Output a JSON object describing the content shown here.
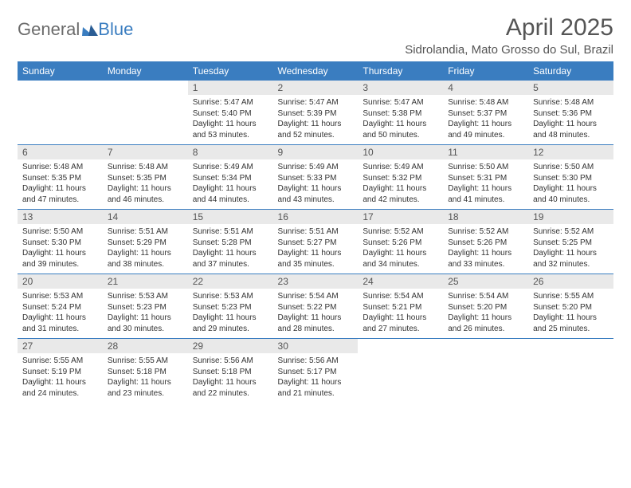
{
  "brand": {
    "part1": "General",
    "part2": "Blue"
  },
  "title": "April 2025",
  "location": "Sidrolandia, Mato Grosso do Sul, Brazil",
  "colors": {
    "header_bg": "#3a7dc0",
    "header_text": "#ffffff",
    "daynum_bg": "#e9e9e9",
    "rule": "#3a7dc0",
    "logo_gray": "#6b6b6b",
    "logo_blue": "#3a7dc0"
  },
  "columns": [
    "Sunday",
    "Monday",
    "Tuesday",
    "Wednesday",
    "Thursday",
    "Friday",
    "Saturday"
  ],
  "weeks": [
    [
      null,
      null,
      {
        "n": "1",
        "sr": "5:47 AM",
        "ss": "5:40 PM",
        "dl": "11 hours and 53 minutes."
      },
      {
        "n": "2",
        "sr": "5:47 AM",
        "ss": "5:39 PM",
        "dl": "11 hours and 52 minutes."
      },
      {
        "n": "3",
        "sr": "5:47 AM",
        "ss": "5:38 PM",
        "dl": "11 hours and 50 minutes."
      },
      {
        "n": "4",
        "sr": "5:48 AM",
        "ss": "5:37 PM",
        "dl": "11 hours and 49 minutes."
      },
      {
        "n": "5",
        "sr": "5:48 AM",
        "ss": "5:36 PM",
        "dl": "11 hours and 48 minutes."
      }
    ],
    [
      {
        "n": "6",
        "sr": "5:48 AM",
        "ss": "5:35 PM",
        "dl": "11 hours and 47 minutes."
      },
      {
        "n": "7",
        "sr": "5:48 AM",
        "ss": "5:35 PM",
        "dl": "11 hours and 46 minutes."
      },
      {
        "n": "8",
        "sr": "5:49 AM",
        "ss": "5:34 PM",
        "dl": "11 hours and 44 minutes."
      },
      {
        "n": "9",
        "sr": "5:49 AM",
        "ss": "5:33 PM",
        "dl": "11 hours and 43 minutes."
      },
      {
        "n": "10",
        "sr": "5:49 AM",
        "ss": "5:32 PM",
        "dl": "11 hours and 42 minutes."
      },
      {
        "n": "11",
        "sr": "5:50 AM",
        "ss": "5:31 PM",
        "dl": "11 hours and 41 minutes."
      },
      {
        "n": "12",
        "sr": "5:50 AM",
        "ss": "5:30 PM",
        "dl": "11 hours and 40 minutes."
      }
    ],
    [
      {
        "n": "13",
        "sr": "5:50 AM",
        "ss": "5:30 PM",
        "dl": "11 hours and 39 minutes."
      },
      {
        "n": "14",
        "sr": "5:51 AM",
        "ss": "5:29 PM",
        "dl": "11 hours and 38 minutes."
      },
      {
        "n": "15",
        "sr": "5:51 AM",
        "ss": "5:28 PM",
        "dl": "11 hours and 37 minutes."
      },
      {
        "n": "16",
        "sr": "5:51 AM",
        "ss": "5:27 PM",
        "dl": "11 hours and 35 minutes."
      },
      {
        "n": "17",
        "sr": "5:52 AM",
        "ss": "5:26 PM",
        "dl": "11 hours and 34 minutes."
      },
      {
        "n": "18",
        "sr": "5:52 AM",
        "ss": "5:26 PM",
        "dl": "11 hours and 33 minutes."
      },
      {
        "n": "19",
        "sr": "5:52 AM",
        "ss": "5:25 PM",
        "dl": "11 hours and 32 minutes."
      }
    ],
    [
      {
        "n": "20",
        "sr": "5:53 AM",
        "ss": "5:24 PM",
        "dl": "11 hours and 31 minutes."
      },
      {
        "n": "21",
        "sr": "5:53 AM",
        "ss": "5:23 PM",
        "dl": "11 hours and 30 minutes."
      },
      {
        "n": "22",
        "sr": "5:53 AM",
        "ss": "5:23 PM",
        "dl": "11 hours and 29 minutes."
      },
      {
        "n": "23",
        "sr": "5:54 AM",
        "ss": "5:22 PM",
        "dl": "11 hours and 28 minutes."
      },
      {
        "n": "24",
        "sr": "5:54 AM",
        "ss": "5:21 PM",
        "dl": "11 hours and 27 minutes."
      },
      {
        "n": "25",
        "sr": "5:54 AM",
        "ss": "5:20 PM",
        "dl": "11 hours and 26 minutes."
      },
      {
        "n": "26",
        "sr": "5:55 AM",
        "ss": "5:20 PM",
        "dl": "11 hours and 25 minutes."
      }
    ],
    [
      {
        "n": "27",
        "sr": "5:55 AM",
        "ss": "5:19 PM",
        "dl": "11 hours and 24 minutes."
      },
      {
        "n": "28",
        "sr": "5:55 AM",
        "ss": "5:18 PM",
        "dl": "11 hours and 23 minutes."
      },
      {
        "n": "29",
        "sr": "5:56 AM",
        "ss": "5:18 PM",
        "dl": "11 hours and 22 minutes."
      },
      {
        "n": "30",
        "sr": "5:56 AM",
        "ss": "5:17 PM",
        "dl": "11 hours and 21 minutes."
      },
      null,
      null,
      null
    ]
  ],
  "labels": {
    "sunrise": "Sunrise: ",
    "sunset": "Sunset: ",
    "daylight": "Daylight: "
  }
}
